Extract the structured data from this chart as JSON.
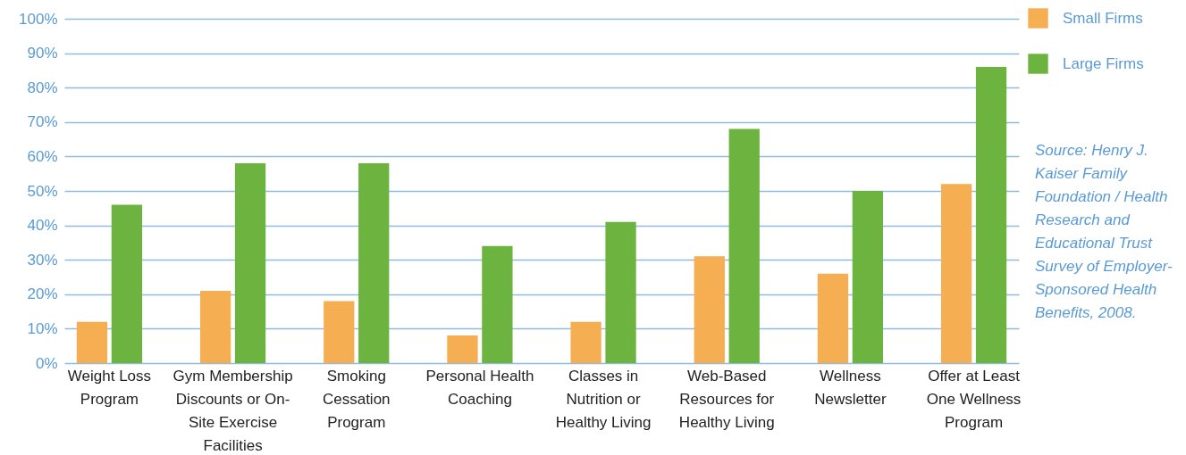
{
  "chart_data": {
    "type": "bar",
    "categories": [
      "Weight Loss Program",
      "Gym Membership Discounts or On-Site Exercise Facilities",
      "Smoking Cessation Program",
      "Personal Health Coaching",
      "Classes in Nutrition or Healthy Living",
      "Web-Based Resources for Healthy Living",
      "Wellness Newsletter",
      "Offer at Least One Wellness Program"
    ],
    "series": [
      {
        "name": "Small Firms",
        "color": "#f5ae52",
        "values": [
          12,
          21,
          18,
          8,
          12,
          31,
          26,
          52
        ]
      },
      {
        "name": "Large Firms",
        "color": "#6db33f",
        "values": [
          46,
          58,
          58,
          34,
          41,
          68,
          50,
          86
        ]
      }
    ],
    "ylim": [
      0,
      100
    ],
    "yticks": [
      {
        "value": 0,
        "label": "0%"
      },
      {
        "value": 10,
        "label": "10%"
      },
      {
        "value": 20,
        "label": "20%"
      },
      {
        "value": 30,
        "label": "30%"
      },
      {
        "value": 40,
        "label": "40%"
      },
      {
        "value": 50,
        "label": "50%"
      },
      {
        "value": 60,
        "label": "60%"
      },
      {
        "value": 70,
        "label": "70%"
      },
      {
        "value": 80,
        "label": "80%"
      },
      {
        "value": 90,
        "label": "90%"
      },
      {
        "value": 100,
        "label": "100%"
      }
    ],
    "grid": "y",
    "legend": "top right",
    "annotations": [
      "Source: Henry J. Kaiser Family Foundation / Health Research and Educational Trust Survey of Employer-Sponsored Health Benefits, 2008."
    ]
  }
}
